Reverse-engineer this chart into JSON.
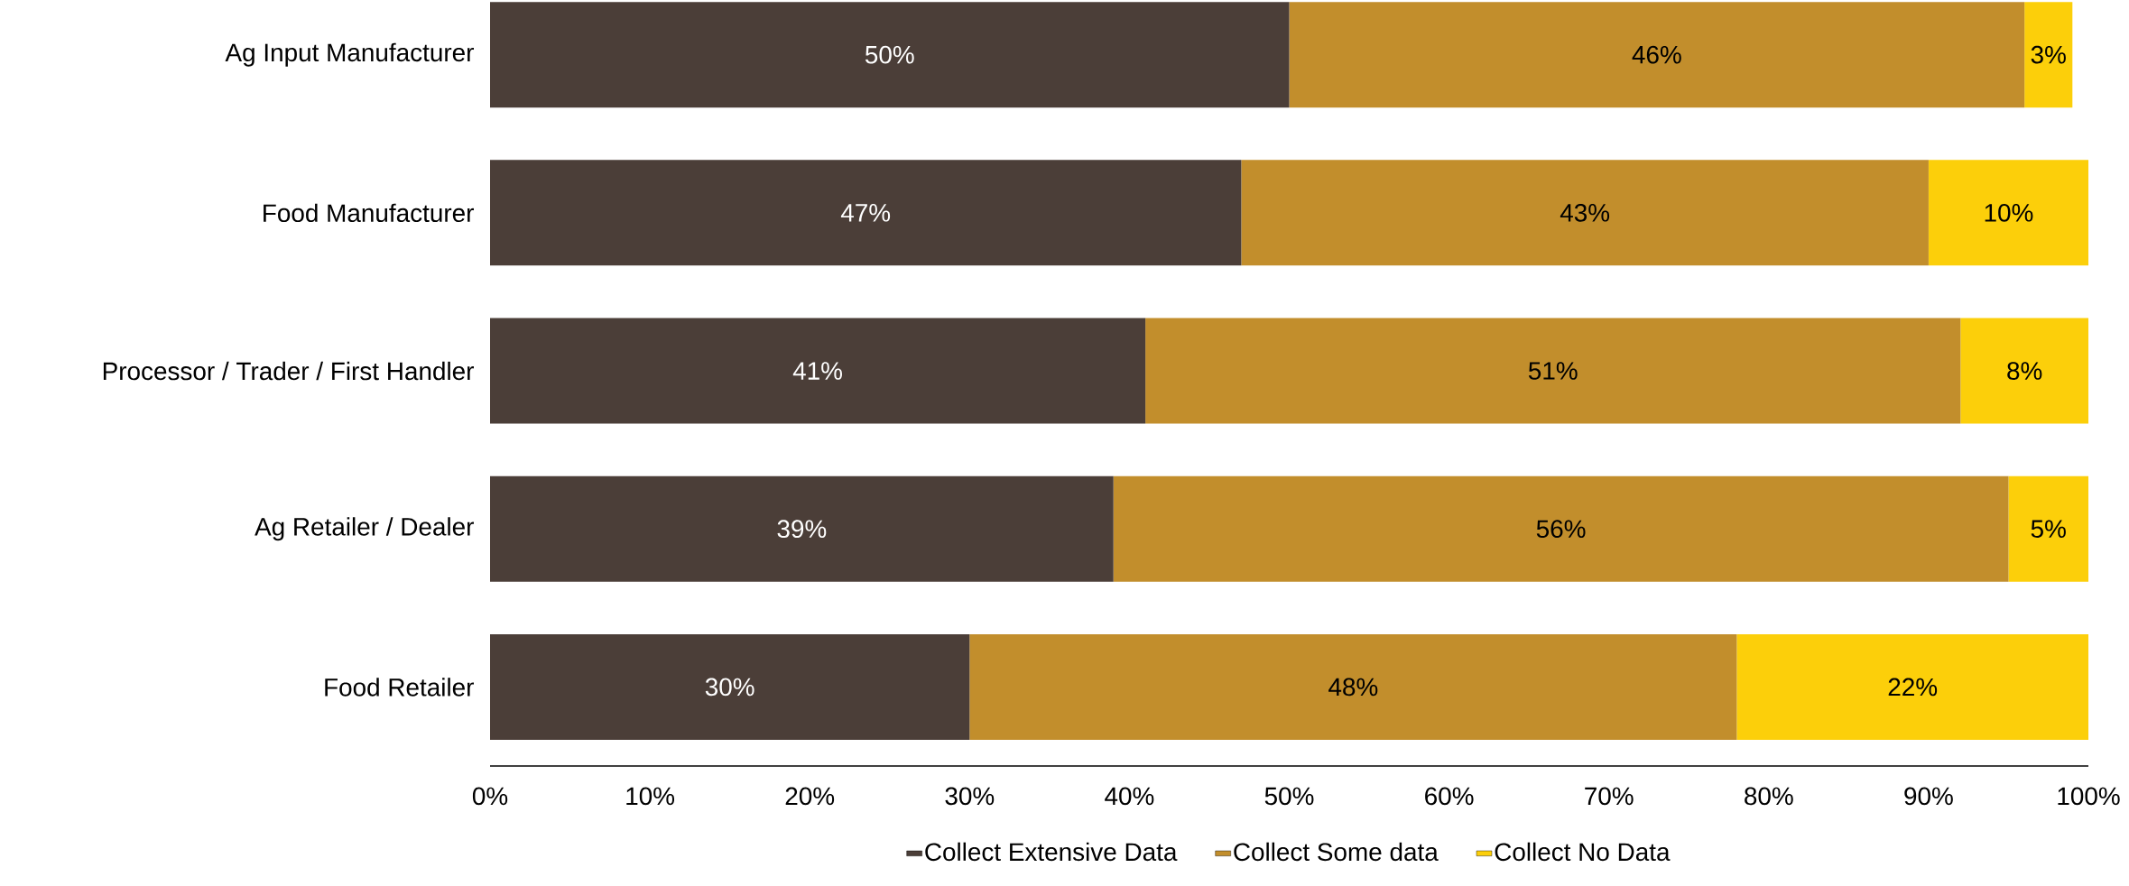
{
  "chart_data": {
    "type": "bar",
    "orientation": "horizontal",
    "stacked": true,
    "categories": [
      "Ag Input Manufacturer",
      "Food Manufacturer",
      "Processor / Trader / First Handler",
      "Ag Retailer / Dealer",
      "Food Retailer"
    ],
    "series": [
      {
        "name": "Collect Extensive Data",
        "color": "#4b3e38",
        "values": [
          50,
          47,
          41,
          39,
          30
        ],
        "value_labels": [
          "50%",
          "47%",
          "41%",
          "39%",
          "30%"
        ]
      },
      {
        "name": "Collect Some data",
        "color": "#c28e2c",
        "values": [
          46,
          43,
          51,
          56,
          48
        ],
        "value_labels": [
          "46%",
          "43%",
          "51%",
          "56%",
          "48%"
        ]
      },
      {
        "name": "Collect No Data",
        "color": "#fccf0a",
        "values": [
          3,
          10,
          8,
          5,
          22
        ],
        "value_labels": [
          "3%",
          "10%",
          "8%",
          "5%",
          "22%"
        ]
      }
    ],
    "xlim": [
      0,
      100
    ],
    "xticks": [
      {
        "value": 0,
        "label": "0%"
      },
      {
        "value": 10,
        "label": "10%"
      },
      {
        "value": 20,
        "label": "20%"
      },
      {
        "value": 30,
        "label": "30%"
      },
      {
        "value": 40,
        "label": "40%"
      },
      {
        "value": 50,
        "label": "50%"
      },
      {
        "value": 60,
        "label": "60%"
      },
      {
        "value": 70,
        "label": "70%"
      },
      {
        "value": 80,
        "label": "80%"
      },
      {
        "value": 90,
        "label": "90%"
      },
      {
        "value": 100,
        "label": "100%"
      }
    ],
    "legend": "bottom",
    "grid": false
  }
}
